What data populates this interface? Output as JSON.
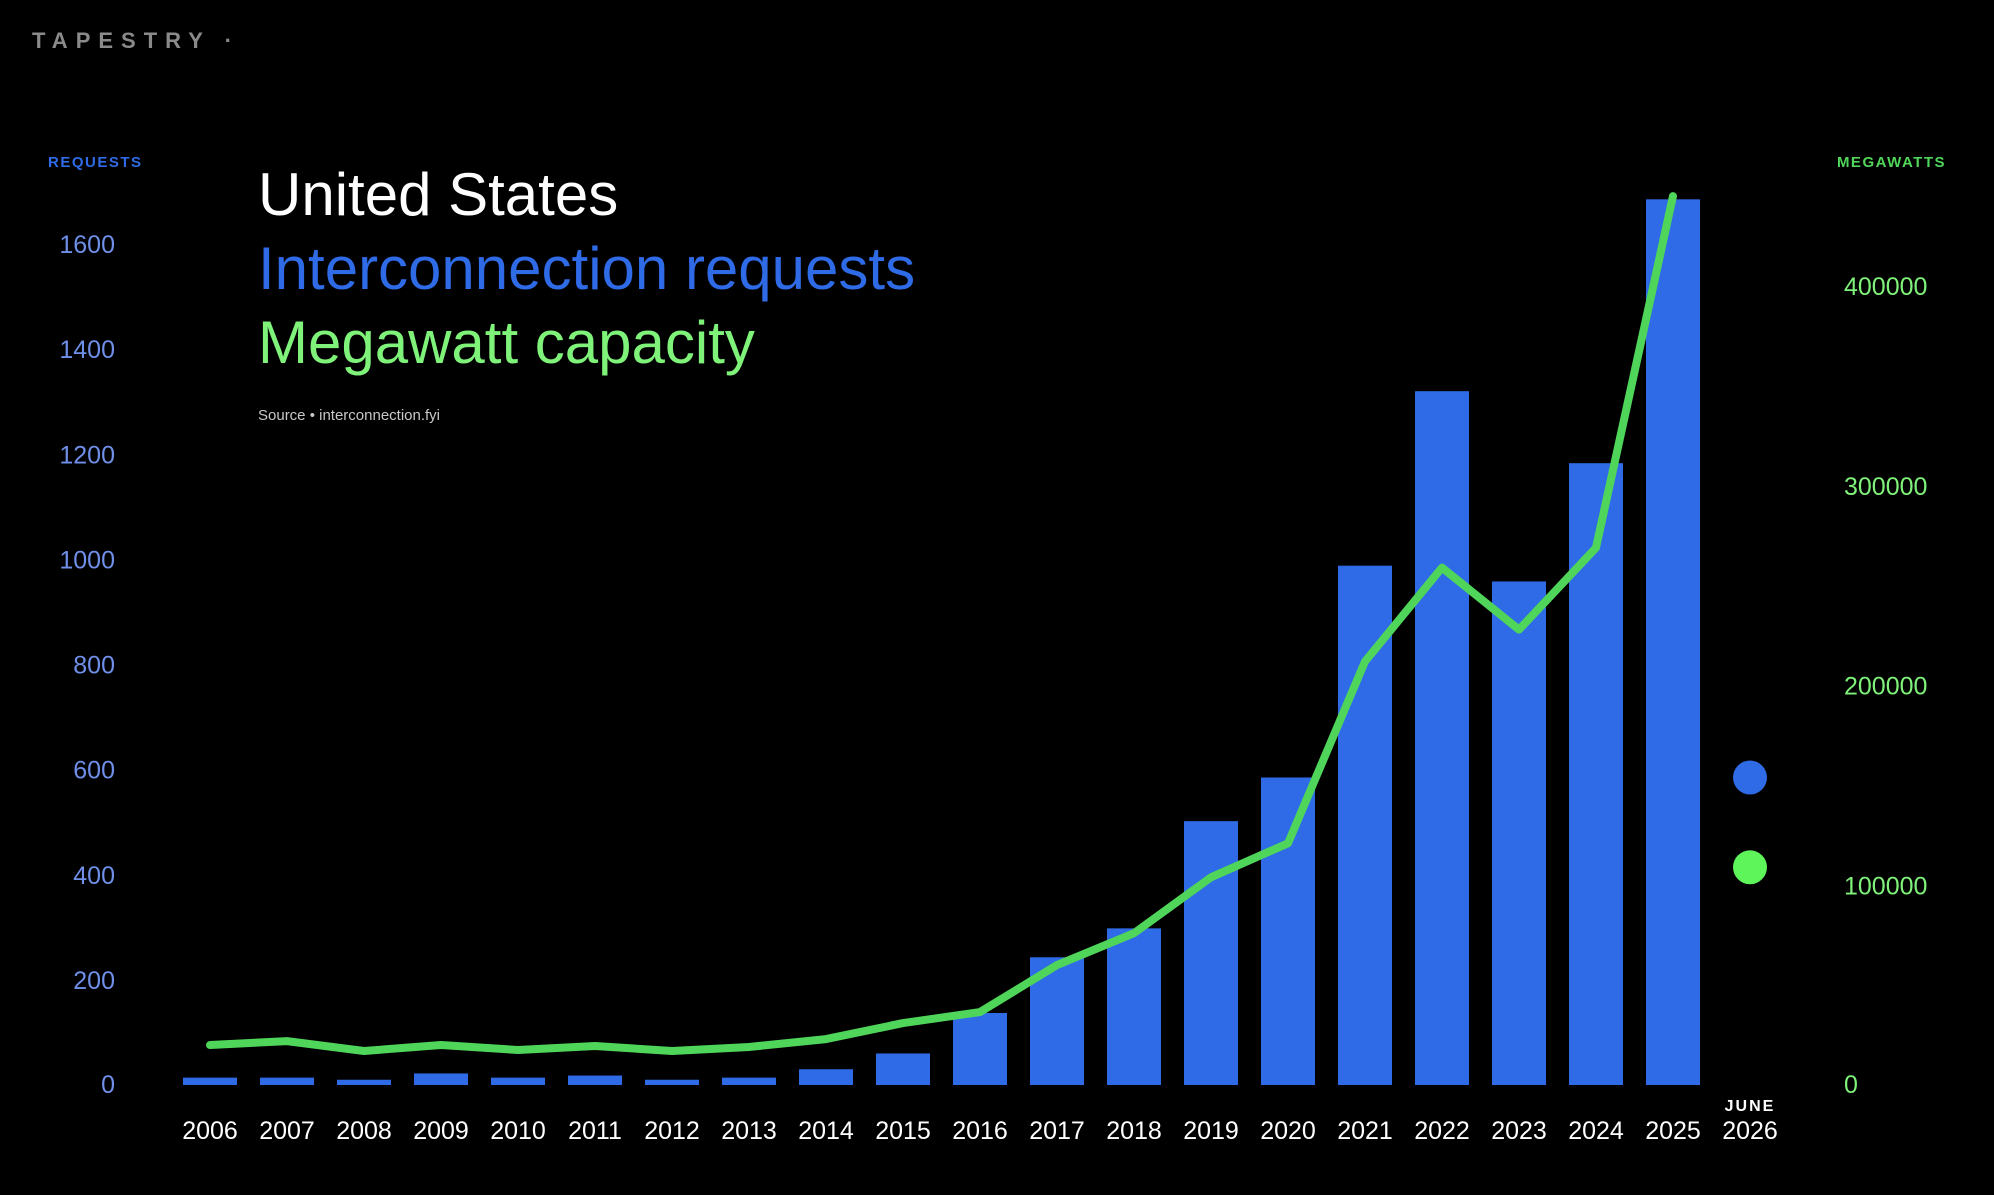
{
  "brand": "TAPESTRY ·",
  "colors": {
    "background": "#000000",
    "requests": "#2f6be6",
    "megawatts": "#4fd65a",
    "megawatts_text": "#7ff27a",
    "axis_left_text": "#6f8fe8",
    "axis_right_text": "#7ff27a",
    "tick_text": "#ffffff"
  },
  "chart_data": {
    "type": "bar",
    "title_lines": [
      "United States",
      "Interconnection requests",
      "Megawatt capacity"
    ],
    "source": "Source • interconnection.fyi",
    "y_left_label": "REQUESTS",
    "y_right_label": "MEGAWATTS",
    "categories": [
      "2006",
      "2007",
      "2008",
      "2009",
      "2010",
      "2011",
      "2012",
      "2013",
      "2014",
      "2015",
      "2016",
      "2017",
      "2018",
      "2019",
      "2020",
      "2021",
      "2022",
      "2023",
      "2024",
      "2025",
      "2026"
    ],
    "last_category_note": "JUNE",
    "y_left_ticks": [
      0,
      200,
      400,
      600,
      800,
      1000,
      1200,
      1400,
      1600
    ],
    "y_right_ticks": [
      0,
      100000,
      200000,
      300000,
      400000
    ],
    "y_left_range": [
      0,
      1700
    ],
    "y_right_range": [
      0,
      440000
    ],
    "series": [
      {
        "name": "Interconnection requests",
        "kind": "bar",
        "axis": "left",
        "values": [
          14,
          14,
          10,
          22,
          14,
          18,
          10,
          14,
          30,
          60,
          137,
          243,
          298,
          502,
          585,
          988,
          1320,
          958,
          1183,
          1685,
          null
        ]
      },
      {
        "name": "Megawatt capacity",
        "kind": "line",
        "axis": "right",
        "values": [
          20000,
          22000,
          17000,
          20000,
          17500,
          19500,
          17000,
          19000,
          23000,
          31000,
          36500,
          60000,
          76000,
          104000,
          121000,
          212000,
          259000,
          228000,
          269000,
          445000,
          null
        ]
      }
    ],
    "markers_2026": [
      {
        "series": "Interconnection requests",
        "value": 585
      },
      {
        "series": "Megawatt capacity",
        "value": 109000
      }
    ]
  }
}
